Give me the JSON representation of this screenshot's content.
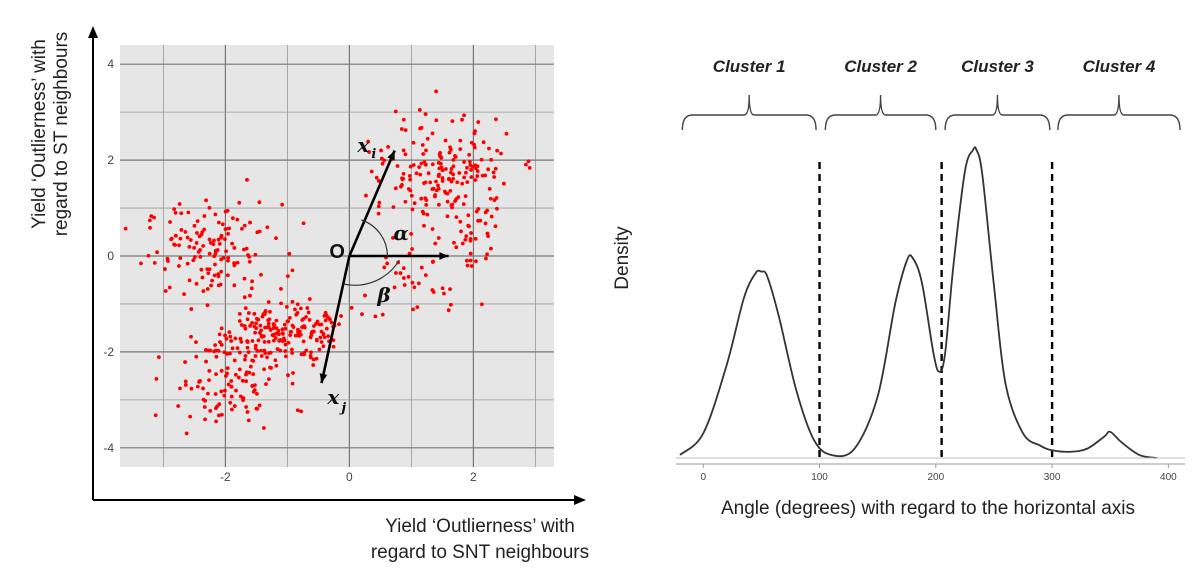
{
  "chart_data": [
    {
      "type": "scatter",
      "xlabel_lines": [
        "Yield ‘Outlierness’ with",
        "regard to SNT neighbours"
      ],
      "ylabel_lines": [
        "Yield ‘Outlierness’ with",
        "regard to ST neighbours"
      ],
      "xlim": [
        -3.7,
        3.3
      ],
      "ylim": [
        -4.4,
        4.4
      ],
      "xticks": [
        -2,
        0,
        2
      ],
      "yticks": [
        -4,
        -2,
        0,
        2,
        4
      ],
      "grid": true,
      "point_color": "#ff0000",
      "clusters": [
        {
          "cx": -2.2,
          "cy": 0.1,
          "sx": 0.55,
          "sy": 0.5,
          "n": 140
        },
        {
          "cx": -1.2,
          "cy": -1.6,
          "sx": 0.4,
          "sy": 0.35,
          "n": 140
        },
        {
          "cx": -2.0,
          "cy": -2.6,
          "sx": 0.45,
          "sy": 0.55,
          "n": 110
        },
        {
          "cx": -0.6,
          "cy": -1.5,
          "sx": 0.35,
          "sy": 0.25,
          "n": 45
        },
        {
          "cx": 1.6,
          "cy": 1.8,
          "sx": 0.5,
          "sy": 0.55,
          "n": 150
        },
        {
          "cx": 1.9,
          "cy": 0.4,
          "sx": 0.3,
          "sy": 0.6,
          "n": 50
        },
        {
          "cx": 0.9,
          "cy": -0.6,
          "sx": 0.35,
          "sy": 0.35,
          "n": 30
        },
        {
          "cx": 0.6,
          "cy": 1.6,
          "sx": 0.3,
          "sy": 0.3,
          "n": 20
        }
      ],
      "vectors": [
        {
          "label": "x",
          "subscript": "i",
          "end": [
            0.73,
            2.2
          ]
        },
        {
          "label": "x",
          "subscript": "j",
          "end": [
            -0.45,
            -2.65
          ]
        },
        {
          "label": "",
          "subscript": "",
          "end": [
            1.6,
            0
          ]
        }
      ],
      "origin_label": "O",
      "angle_labels": [
        "α",
        "β"
      ]
    },
    {
      "type": "line",
      "xlabel": "Angle (degrees) with regard to the horizontal axis",
      "ylabel": "Density",
      "xlim": [
        -20,
        410
      ],
      "ylim": [
        0,
        1.0
      ],
      "xticks": [
        0,
        100,
        200,
        300,
        400
      ],
      "x": [
        -20,
        0,
        20,
        35,
        45,
        50,
        55,
        65,
        80,
        95,
        110,
        130,
        150,
        165,
        175,
        180,
        188,
        198,
        203,
        208,
        215,
        225,
        232,
        235,
        240,
        250,
        260,
        275,
        290,
        300,
        315,
        330,
        345,
        350,
        360,
        375,
        390
      ],
      "y": [
        0.01,
        0.08,
        0.3,
        0.52,
        0.6,
        0.605,
        0.59,
        0.46,
        0.22,
        0.06,
        0.01,
        0.03,
        0.2,
        0.5,
        0.64,
        0.65,
        0.57,
        0.34,
        0.28,
        0.34,
        0.62,
        0.93,
        1.0,
        1.0,
        0.92,
        0.56,
        0.24,
        0.08,
        0.04,
        0.025,
        0.02,
        0.03,
        0.07,
        0.085,
        0.05,
        0.01,
        0.0
      ],
      "dividers": [
        100,
        205,
        300
      ],
      "clusters": [
        {
          "label": "Cluster 1",
          "from": -18,
          "to": 97
        },
        {
          "label": "Cluster 2",
          "from": 105,
          "to": 200
        },
        {
          "label": "Cluster 3",
          "from": 208,
          "to": 298
        },
        {
          "label": "Cluster 4",
          "from": 305,
          "to": 410
        }
      ]
    }
  ]
}
